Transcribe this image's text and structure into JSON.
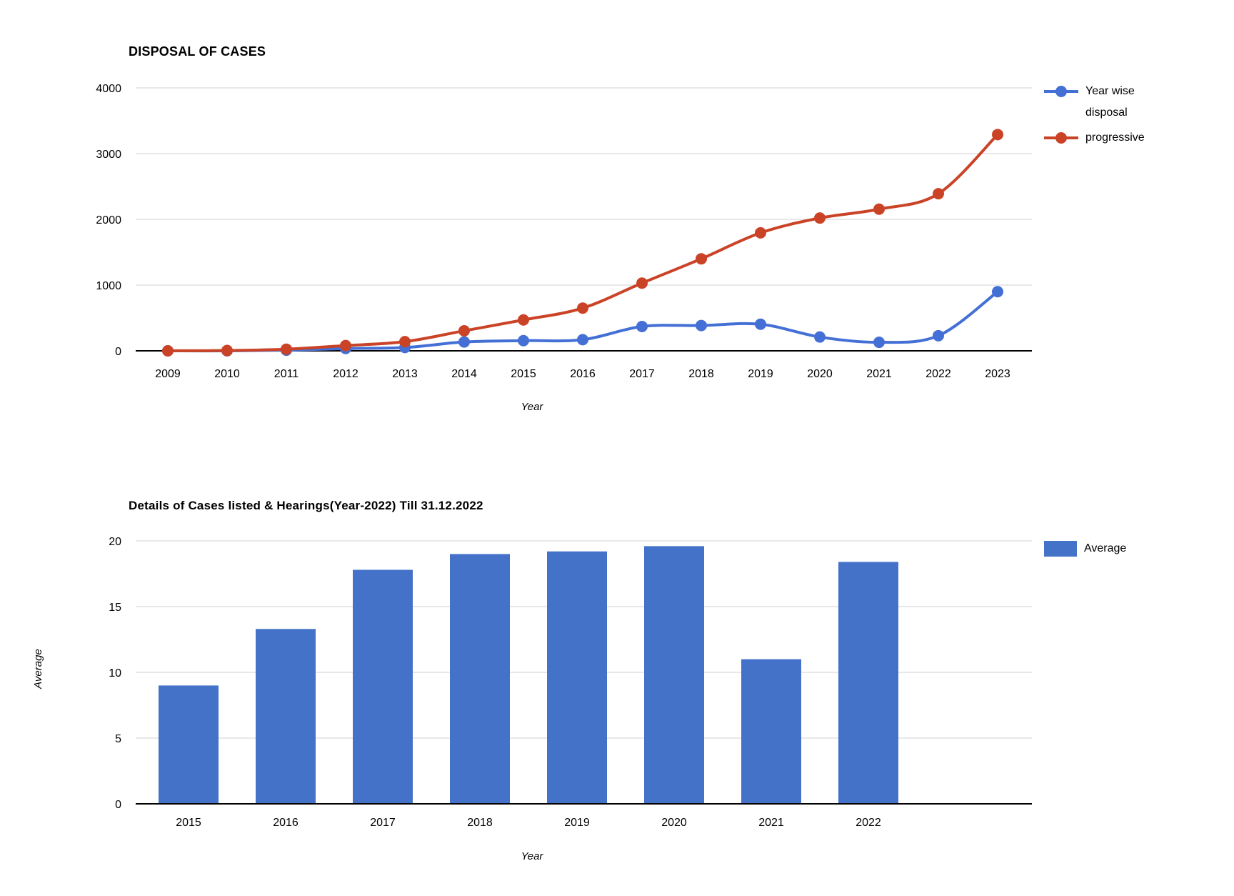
{
  "chart_data": [
    {
      "type": "line",
      "title": "DISPOSAL OF CASES",
      "xlabel": "Year",
      "x": [
        "2009",
        "2010",
        "2011",
        "2012",
        "2013",
        "2014",
        "2015",
        "2016",
        "2017",
        "2018",
        "2019",
        "2020",
        "2021",
        "2022",
        "2023"
      ],
      "series": [
        {
          "name": "Year wise disposal",
          "color": "#4470d6",
          "values": [
            0,
            0,
            10,
            35,
            50,
            135,
            155,
            170,
            370,
            385,
            405,
            210,
            130,
            230,
            900
          ]
        },
        {
          "name": "progressive",
          "color": "#cb4327",
          "values": [
            0,
            5,
            25,
            80,
            140,
            305,
            470,
            650,
            1030,
            1400,
            1795,
            2020,
            2155,
            2390,
            3290
          ]
        }
      ],
      "ylim": [
        0,
        4000
      ],
      "y_ticks": [
        0,
        1000,
        2000,
        3000,
        4000
      ],
      "grid": true,
      "legend_position": "right"
    },
    {
      "type": "bar",
      "title": "Details of Cases listed & Hearings(Year-2022) Till 31.12.2022",
      "xlabel": "Year",
      "ylabel": "Average",
      "categories": [
        "2015",
        "2016",
        "2017",
        "2018",
        "2019",
        "2020",
        "2021",
        "2022"
      ],
      "series": [
        {
          "name": "Average",
          "color": "#4472c9",
          "values": [
            9.0,
            13.3,
            17.8,
            19.0,
            19.2,
            19.6,
            11.0,
            18.4
          ]
        }
      ],
      "ylim": [
        0,
        20
      ],
      "y_ticks": [
        0,
        5,
        10,
        15,
        20
      ],
      "grid": true,
      "legend_position": "right"
    }
  ],
  "colors": {
    "grid_line": "#d9d9d9",
    "axis_line": "#000000",
    "text": "#000000",
    "background": "#ffffff"
  }
}
